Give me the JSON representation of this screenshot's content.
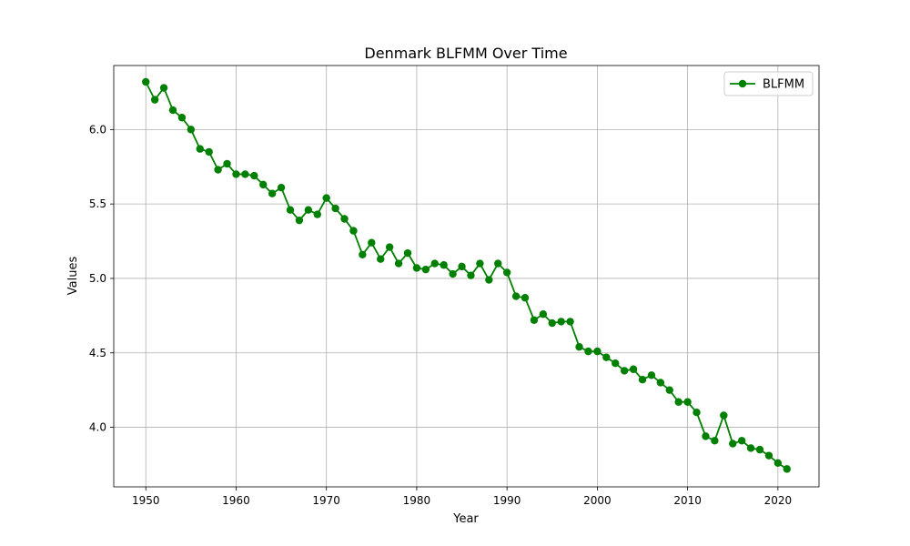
{
  "chart_data": {
    "type": "line",
    "title": "Denmark BLFMM Over Time",
    "xlabel": "Year",
    "ylabel": "Values",
    "xlim": [
      1946.45,
      2024.55
    ],
    "ylim": [
      3.6,
      6.43
    ],
    "x_ticks": [
      1950,
      1960,
      1970,
      1980,
      1990,
      2000,
      2010,
      2020
    ],
    "y_ticks": [
      4.0,
      4.5,
      5.0,
      5.5,
      6.0
    ],
    "grid": true,
    "legend_position": "top-right",
    "series": [
      {
        "name": "BLFMM",
        "color": "#008000",
        "marker": "circle",
        "x": [
          1950,
          1951,
          1952,
          1953,
          1954,
          1955,
          1956,
          1957,
          1958,
          1959,
          1960,
          1961,
          1962,
          1963,
          1964,
          1965,
          1966,
          1967,
          1968,
          1969,
          1970,
          1971,
          1972,
          1973,
          1974,
          1975,
          1976,
          1977,
          1978,
          1979,
          1980,
          1981,
          1982,
          1983,
          1984,
          1985,
          1986,
          1987,
          1988,
          1989,
          1990,
          1991,
          1992,
          1993,
          1994,
          1995,
          1996,
          1997,
          1998,
          1999,
          2000,
          2001,
          2002,
          2003,
          2004,
          2005,
          2006,
          2007,
          2008,
          2009,
          2010,
          2011,
          2012,
          2013,
          2014,
          2015,
          2016,
          2017,
          2018,
          2019,
          2020,
          2021
        ],
        "values": [
          6.32,
          6.2,
          6.28,
          6.13,
          6.08,
          6.0,
          5.87,
          5.85,
          5.73,
          5.77,
          5.7,
          5.7,
          5.69,
          5.63,
          5.57,
          5.61,
          5.46,
          5.39,
          5.46,
          5.43,
          5.54,
          5.47,
          5.4,
          5.32,
          5.16,
          5.24,
          5.13,
          5.21,
          5.1,
          5.17,
          5.07,
          5.06,
          5.1,
          5.09,
          5.03,
          5.08,
          5.02,
          5.1,
          4.99,
          5.1,
          5.04,
          4.88,
          4.87,
          4.72,
          4.76,
          4.7,
          4.71,
          4.71,
          4.54,
          4.51,
          4.51,
          4.47,
          4.43,
          4.38,
          4.39,
          4.32,
          4.35,
          4.3,
          4.25,
          4.17,
          4.17,
          4.1,
          3.94,
          3.91,
          4.08,
          3.89,
          3.91,
          3.86,
          3.85,
          3.81,
          3.76,
          3.72
        ]
      }
    ]
  }
}
